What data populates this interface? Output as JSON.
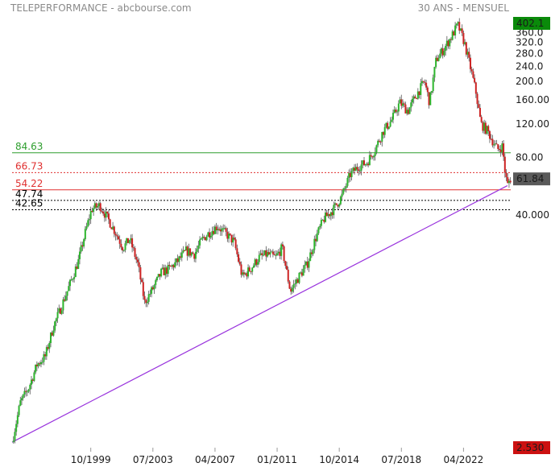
{
  "header": {
    "title": "TELEPERFORMANCE - abcbourse.com",
    "period": "30 ANS - MENSUEL"
  },
  "colors": {
    "up": "#2db52d",
    "down": "#cc2222",
    "wick": "#555555",
    "support_line": "#2e9e2e",
    "resistance_line": "#e03030",
    "fib_line": "#000000",
    "trend_line": "#9933dd",
    "top_price_badge": "#0a8a0a",
    "last_price_badge": "#5a5a5a",
    "low_price_badge": "#cc1111"
  },
  "chart_data": {
    "type": "candlestick",
    "yscale": "log",
    "ylim": [
      2.53,
      402.1
    ],
    "y_ticks": [
      "40.000",
      "80.00",
      "120.00",
      "160.00",
      "200.0",
      "240.0",
      "280.0",
      "320.0",
      "360.0"
    ],
    "x_ticks": [
      "10/1999",
      "07/2003",
      "04/2007",
      "01/2011",
      "10/2014",
      "07/2018",
      "04/2022"
    ],
    "x_tick_years": [
      1999.75,
      2003.5,
      2007.25,
      2011.0,
      2014.75,
      2018.5,
      2022.25
    ],
    "x_range_years": [
      1995.0,
      2025.1
    ],
    "price_badges": {
      "top": "402.1",
      "last": "61.84",
      "low": "2.530"
    },
    "horizontal_levels": [
      {
        "label": "84.63",
        "value": 84.63,
        "style": "solid",
        "color": "green"
      },
      {
        "label": "66.73",
        "value": 66.73,
        "style": "dotted",
        "color": "red"
      },
      {
        "label": "54.22",
        "value": 54.22,
        "style": "solid",
        "color": "red"
      },
      {
        "label": "47.74",
        "value": 47.74,
        "style": "dotted",
        "color": "black"
      },
      {
        "label": "42.65",
        "value": 42.65,
        "style": "dotted",
        "color": "black"
      }
    ],
    "trendline": {
      "from": [
        1995.0,
        2.6
      ],
      "to": [
        2024.9,
        57.0
      ]
    },
    "price_path": [
      [
        1995.0,
        2.6
      ],
      [
        1995.5,
        4.2
      ],
      [
        1996.0,
        5.0
      ],
      [
        1996.5,
        6.6
      ],
      [
        1997.0,
        7.3
      ],
      [
        1997.5,
        10.5
      ],
      [
        1998.0,
        13.5
      ],
      [
        1998.5,
        17.5
      ],
      [
        1999.0,
        23.0
      ],
      [
        1999.4,
        32.0
      ],
      [
        1999.8,
        43.0
      ],
      [
        2000.3,
        45.0
      ],
      [
        2000.8,
        38.0
      ],
      [
        2001.2,
        33.0
      ],
      [
        2001.7,
        27.0
      ],
      [
        2002.1,
        30.0
      ],
      [
        2002.6,
        22.0
      ],
      [
        2003.0,
        14.0
      ],
      [
        2003.5,
        16.5
      ],
      [
        2004.0,
        20.0
      ],
      [
        2004.5,
        21.0
      ],
      [
        2005.0,
        23.0
      ],
      [
        2005.5,
        26.0
      ],
      [
        2006.0,
        25.0
      ],
      [
        2006.5,
        30.0
      ],
      [
        2007.0,
        33.0
      ],
      [
        2007.4,
        35.0
      ],
      [
        2007.9,
        32.0
      ],
      [
        2008.4,
        29.0
      ],
      [
        2008.9,
        19.0
      ],
      [
        2009.4,
        21.0
      ],
      [
        2009.9,
        24.0
      ],
      [
        2010.4,
        25.0
      ],
      [
        2010.9,
        24.0
      ],
      [
        2011.3,
        27.0
      ],
      [
        2011.8,
        16.0
      ],
      [
        2012.3,
        19.0
      ],
      [
        2012.8,
        22.0
      ],
      [
        2013.3,
        30.0
      ],
      [
        2013.8,
        38.0
      ],
      [
        2014.4,
        43.0
      ],
      [
        2014.9,
        50.0
      ],
      [
        2015.4,
        65.0
      ],
      [
        2015.9,
        72.0
      ],
      [
        2016.4,
        75.0
      ],
      [
        2016.9,
        88.0
      ],
      [
        2017.4,
        110.0
      ],
      [
        2017.9,
        125.0
      ],
      [
        2018.4,
        155.0
      ],
      [
        2018.9,
        140.0
      ],
      [
        2019.4,
        170.0
      ],
      [
        2019.9,
        200.0
      ],
      [
        2020.2,
        155.0
      ],
      [
        2020.6,
        260.0
      ],
      [
        2021.0,
        290.0
      ],
      [
        2021.5,
        340.0
      ],
      [
        2021.9,
        395.0
      ],
      [
        2022.3,
        320.0
      ],
      [
        2022.7,
        230.0
      ],
      [
        2023.0,
        175.0
      ],
      [
        2023.3,
        120.0
      ],
      [
        2023.7,
        110.0
      ],
      [
        2024.0,
        98.0
      ],
      [
        2024.3,
        88.0
      ],
      [
        2024.6,
        92.0
      ],
      [
        2024.75,
        68.0
      ],
      [
        2024.9,
        57.0
      ],
      [
        2025.05,
        61.84
      ]
    ]
  }
}
